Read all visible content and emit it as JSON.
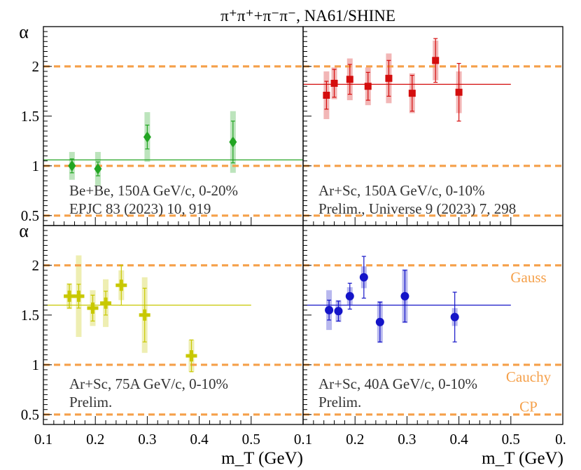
{
  "figure_title": "π⁺π⁺+π⁻π⁻, NA61/SHINE",
  "y_axis_label": "α",
  "x_axis_label": "m_T (GeV)",
  "reference_lines": [
    {
      "label": "Gauss",
      "value": 2.0
    },
    {
      "label": "Cauchy",
      "value": 1.0
    },
    {
      "label": "CP",
      "value": 0.5
    }
  ],
  "colors": {
    "reference": "#f5a04a",
    "frame": "#000000",
    "panel_text": "#333333"
  },
  "chart_data": [
    {
      "type": "scatter",
      "id": "bebe",
      "marker": "diamond",
      "color": "#22a522",
      "label_line1": "Be+Be, 150A GeV/c, 0-20%",
      "label_line2": "EPJC 83 (2023) 10, 919",
      "xlim": [
        0.1,
        0.6
      ],
      "ylim": [
        0.4,
        2.4
      ],
      "x": [
        0.155,
        0.205,
        0.3,
        0.465
      ],
      "y": [
        1.0,
        0.97,
        1.29,
        1.24
      ],
      "stat_err": [
        0.07,
        0.07,
        0.12,
        0.21
      ],
      "sys_err": [
        0.14,
        0.17,
        0.25,
        0.31
      ],
      "fit": {
        "value": 1.06,
        "x_range": [
          0.1,
          0.6
        ]
      }
    },
    {
      "type": "scatter",
      "id": "arsc150",
      "marker": "square",
      "color": "#d40d0d",
      "label_line1": "Ar+Sc, 150A GeV/c, 0-10%",
      "label_line2": "Prelim., Universe 9 (2023) 7, 298",
      "xlim": [
        0.1,
        0.6
      ],
      "ylim": [
        0.4,
        2.4
      ],
      "x": [
        0.145,
        0.16,
        0.19,
        0.225,
        0.265,
        0.31,
        0.355,
        0.4
      ],
      "y": [
        1.71,
        1.83,
        1.87,
        1.8,
        1.88,
        1.73,
        2.06,
        1.74
      ],
      "stat_err": [
        0.14,
        0.14,
        0.15,
        0.14,
        0.18,
        0.18,
        0.22,
        0.29
      ],
      "sys_err": [
        0.24,
        0.16,
        0.21,
        0.19,
        0.25,
        0.2,
        0.2,
        0.21
      ],
      "fit": {
        "value": 1.82,
        "x_range": [
          0.1,
          0.5
        ]
      }
    },
    {
      "type": "scatter",
      "id": "arsc75",
      "marker": "cross",
      "color": "#c8c800",
      "label_line1": "Ar+Sc, 75A GeV/c, 0-10%",
      "label_line2": "Prelim.",
      "xlim": [
        0.1,
        0.6
      ],
      "ylim": [
        0.4,
        2.4
      ],
      "x": [
        0.15,
        0.168,
        0.195,
        0.22,
        0.25,
        0.295,
        0.385
      ],
      "y": [
        1.69,
        1.69,
        1.57,
        1.62,
        1.8,
        1.5,
        1.09
      ],
      "stat_err": [
        0.12,
        0.12,
        0.13,
        0.12,
        0.2,
        0.27,
        0.16
      ],
      "sys_err": [
        0.13,
        0.41,
        0.18,
        0.24,
        0.15,
        0.38,
        0.16
      ],
      "fit": {
        "value": 1.6,
        "x_range": [
          0.1,
          0.5
        ]
      }
    },
    {
      "type": "scatter",
      "id": "arsc40",
      "marker": "circle",
      "color": "#1414c8",
      "label_line1": "Ar+Sc, 40A GeV/c, 0-10%",
      "label_line2": "Prelim.",
      "xlim": [
        0.1,
        0.6
      ],
      "ylim": [
        0.4,
        2.4
      ],
      "x": [
        0.15,
        0.168,
        0.19,
        0.217,
        0.248,
        0.296,
        0.392
      ],
      "y": [
        1.55,
        1.54,
        1.69,
        1.88,
        1.43,
        1.69,
        1.48
      ],
      "stat_err": [
        0.1,
        0.1,
        0.13,
        0.21,
        0.2,
        0.26,
        0.25
      ],
      "sys_err": [
        0.2,
        0.11,
        0.09,
        0.11,
        0.21,
        0.27,
        0.09
      ],
      "fit": {
        "value": 1.6,
        "x_range": [
          0.1,
          0.5
        ]
      }
    }
  ],
  "x_ticks": [
    "0.1",
    "0.2",
    "0.3",
    "0.4",
    "0.5"
  ],
  "x_ticks_right_extra": "0.",
  "y_ticks": [
    "0.5",
    "1",
    "1.5",
    "2"
  ]
}
